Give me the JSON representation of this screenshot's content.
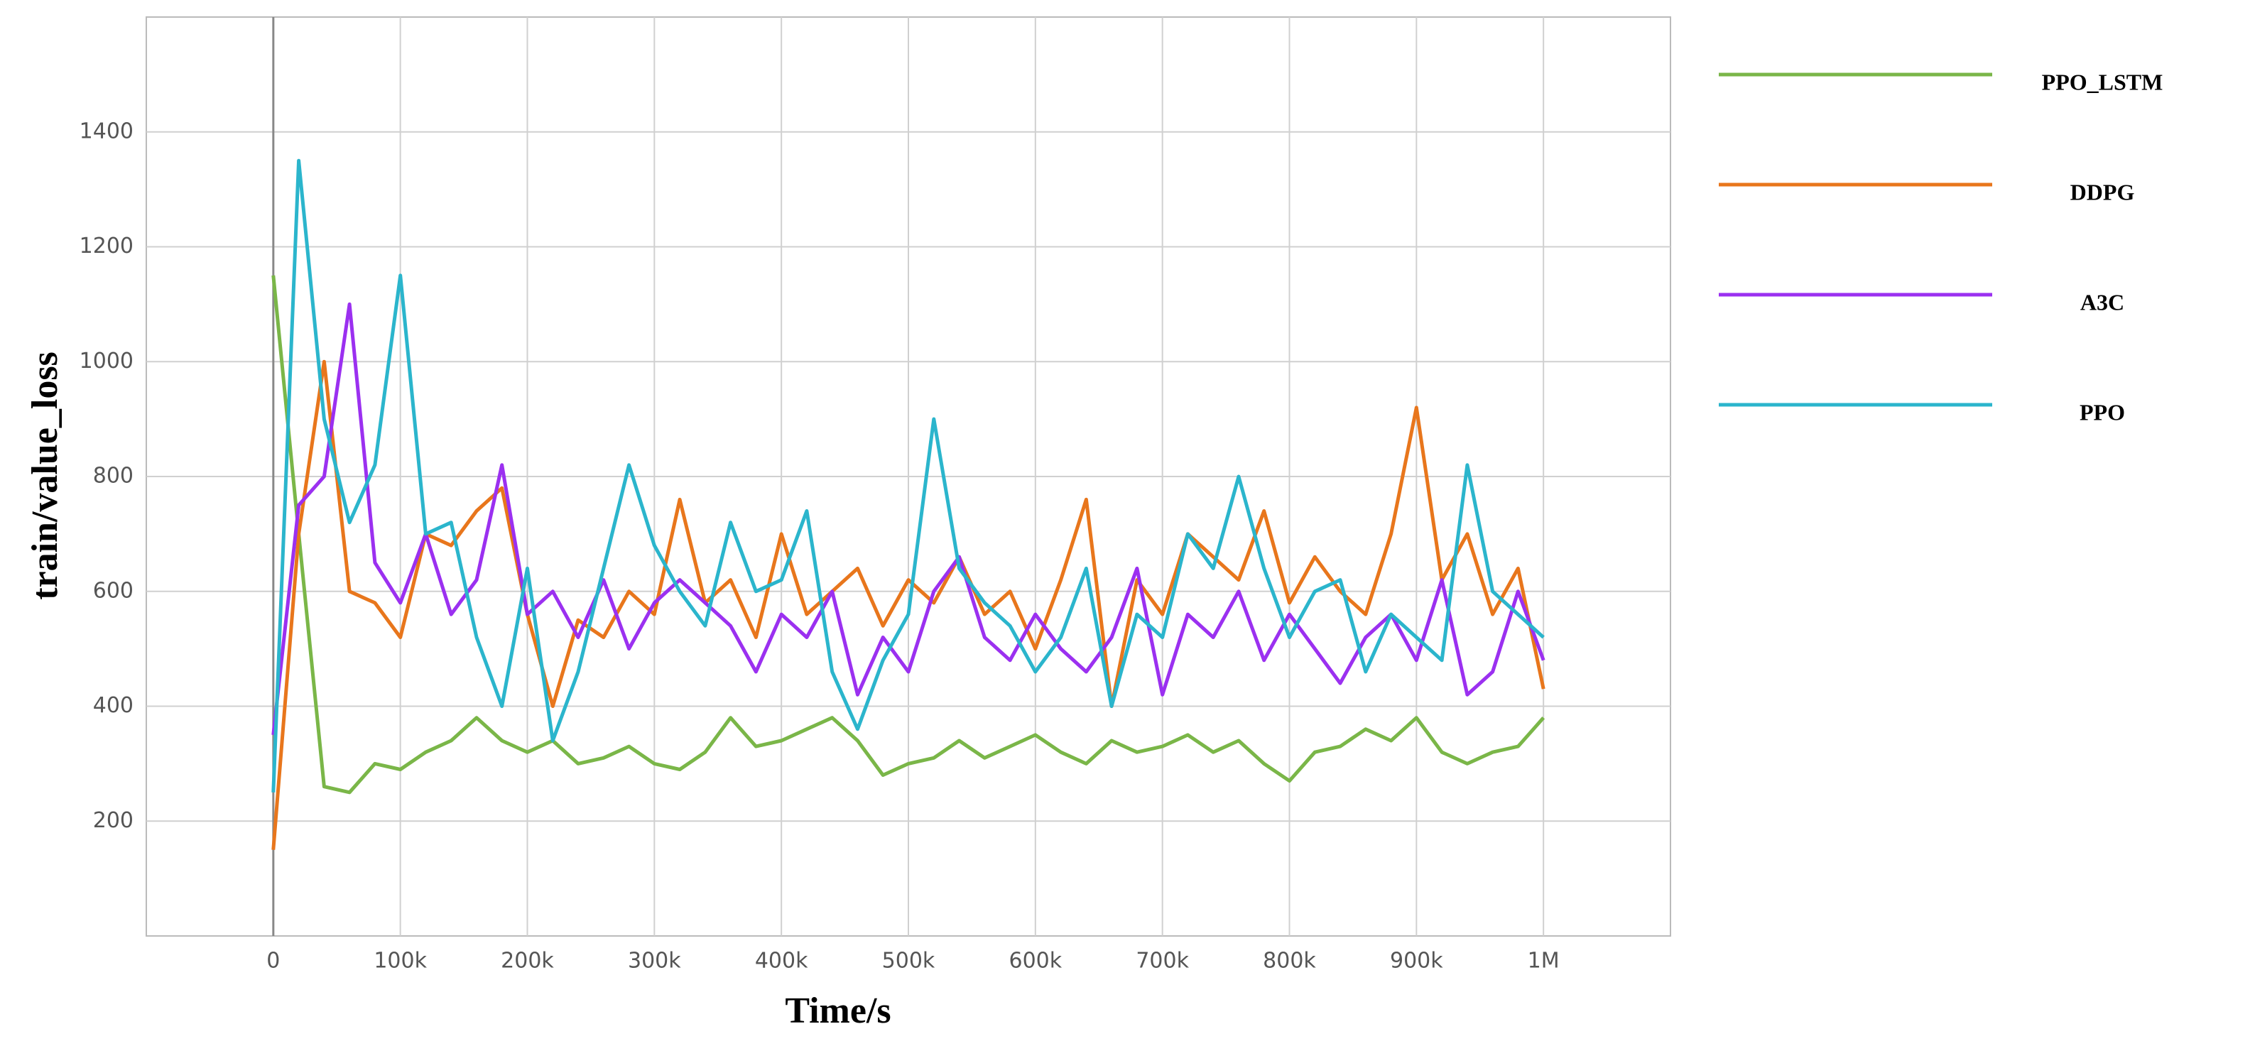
{
  "chart_data": {
    "type": "line",
    "x_label": "Time/s",
    "y_label": "train/value_loss",
    "x": [
      0,
      20000,
      40000,
      60000,
      80000,
      100000,
      120000,
      140000,
      160000,
      180000,
      200000,
      220000,
      240000,
      260000,
      280000,
      300000,
      320000,
      340000,
      360000,
      380000,
      400000,
      420000,
      440000,
      460000,
      480000,
      500000,
      520000,
      540000,
      560000,
      580000,
      600000,
      620000,
      640000,
      660000,
      680000,
      700000,
      720000,
      740000,
      760000,
      780000,
      800000,
      820000,
      840000,
      860000,
      880000,
      900000,
      920000,
      940000,
      960000,
      980000,
      1000000
    ],
    "series": [
      {
        "name": "PPO_LSTM",
        "color": "#7ab648",
        "values": [
          1150,
          700,
          260,
          250,
          300,
          290,
          320,
          340,
          380,
          340,
          320,
          340,
          300,
          310,
          330,
          300,
          290,
          320,
          380,
          330,
          340,
          360,
          380,
          340,
          280,
          300,
          310,
          340,
          310,
          330,
          350,
          320,
          300,
          340,
          320,
          330,
          350,
          320,
          340,
          300,
          270,
          320,
          330,
          360,
          340,
          380,
          320,
          300,
          320,
          330,
          380
        ]
      },
      {
        "name": "DDPG",
        "color": "#e8761c",
        "values": [
          150,
          700,
          1000,
          600,
          580,
          520,
          700,
          680,
          740,
          780,
          560,
          400,
          550,
          520,
          600,
          560,
          760,
          580,
          620,
          520,
          700,
          560,
          600,
          640,
          540,
          620,
          580,
          660,
          560,
          600,
          500,
          620,
          760,
          400,
          620,
          560,
          700,
          660,
          620,
          740,
          580,
          660,
          600,
          560,
          700,
          920,
          620,
          700,
          560,
          640,
          430
        ]
      },
      {
        "name": "A3C",
        "color": "#9b30f0",
        "values": [
          350,
          750,
          800,
          1100,
          650,
          580,
          700,
          560,
          620,
          820,
          560,
          600,
          520,
          620,
          500,
          580,
          620,
          580,
          540,
          460,
          560,
          520,
          600,
          420,
          520,
          460,
          600,
          660,
          520,
          480,
          560,
          500,
          460,
          520,
          640,
          420,
          560,
          520,
          600,
          480,
          560,
          500,
          440,
          520,
          560,
          480,
          620,
          420,
          460,
          600,
          480
        ]
      },
      {
        "name": "PPO",
        "color": "#2bb5cc",
        "values": [
          250,
          1350,
          900,
          720,
          820,
          1150,
          700,
          720,
          520,
          400,
          640,
          340,
          460,
          640,
          820,
          680,
          600,
          540,
          720,
          600,
          620,
          740,
          460,
          360,
          480,
          560,
          900,
          640,
          580,
          540,
          460,
          520,
          640,
          400,
          560,
          520,
          700,
          640,
          800,
          640,
          520,
          600,
          620,
          460,
          560,
          520,
          480,
          820,
          600,
          560,
          520
        ]
      }
    ],
    "xlim": [
      -100000,
      1100000
    ],
    "ylim": [
      0,
      1600
    ],
    "xticks": [
      0,
      {
        "value": 100000,
        "label": "100k"
      },
      {
        "value": 200000,
        "label": "200k"
      },
      {
        "value": 300000,
        "label": "300k"
      },
      {
        "value": 400000,
        "label": "400k"
      },
      {
        "value": 500000,
        "label": "500k"
      },
      {
        "value": 600000,
        "label": "600k"
      },
      {
        "value": 700000,
        "label": "700k"
      },
      {
        "value": 800000,
        "label": "800k"
      },
      {
        "value": 900000,
        "label": "900k"
      },
      {
        "value": 1000000,
        "label": "1M"
      }
    ],
    "yticks": [
      200,
      400,
      600,
      800,
      1000,
      1200,
      1400
    ],
    "grid": true,
    "legend_position": "right"
  }
}
